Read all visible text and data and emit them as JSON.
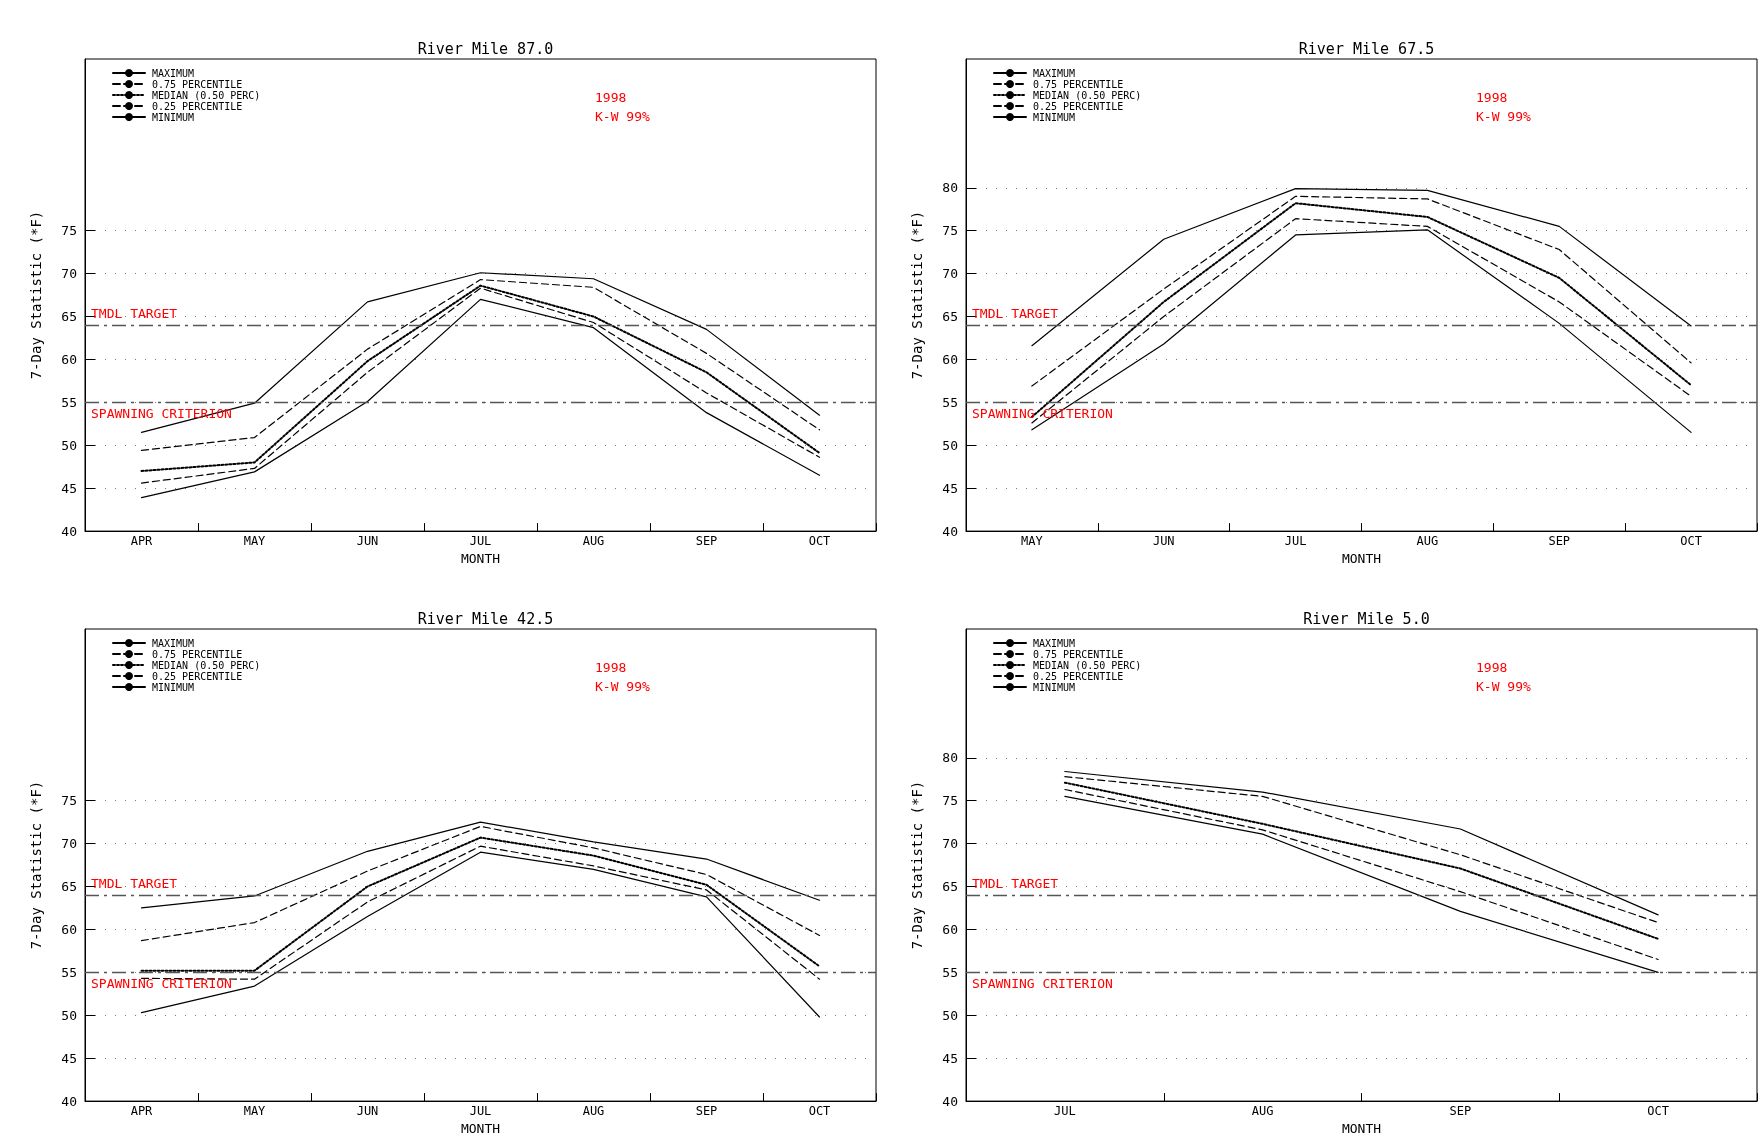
{
  "chart_data": [
    {
      "type": "line",
      "title": "River Mile 87.0",
      "xlabel": "MONTH",
      "ylabel": "7-Day Statistic (*F)",
      "categories": [
        "APR",
        "MAY",
        "JUN",
        "JUL",
        "AUG",
        "SEP",
        "OCT"
      ],
      "ylim": [
        40,
        95
      ],
      "yticks": [
        40,
        45,
        50,
        55,
        60,
        65,
        70,
        75
      ],
      "grid": "y",
      "legend": "top left",
      "marker": "none",
      "series": [
        {
          "name": "MAXIMUM",
          "color": "#000000",
          "line_style": "solid",
          "values": [
            51.5,
            54.9,
            66.7,
            70.1,
            69.4,
            63.5,
            53.5
          ]
        },
        {
          "name": "0.75 PERCENTILE",
          "color": "#000000",
          "line_style": "dashed",
          "values": [
            49.4,
            50.9,
            61.2,
            69.3,
            68.4,
            60.7,
            51.8
          ]
        },
        {
          "name": "MEDIAN (0.50 PERC)",
          "color": "#000000",
          "line_style": "dotted",
          "values": [
            47.0,
            48.0,
            59.8,
            68.6,
            65.0,
            58.5,
            49.1
          ]
        },
        {
          "name": "0.25 PERCENTILE",
          "color": "#000000",
          "line_style": "dashed",
          "values": [
            45.6,
            47.3,
            58.5,
            68.3,
            64.3,
            56.1,
            48.6
          ]
        },
        {
          "name": "MINIMUM",
          "color": "#000000",
          "line_style": "solid",
          "values": [
            43.9,
            46.9,
            55.1,
            67.0,
            63.7,
            53.8,
            46.5
          ]
        }
      ],
      "ref_lines": [
        {
          "axis": "y",
          "value": 64,
          "label": "TMDL TARGET",
          "color": "#555555",
          "line_style": "dashed"
        },
        {
          "axis": "y",
          "value": 55,
          "label": "SPAWNING CRITERION",
          "color": "#555555",
          "line_style": "dashed"
        }
      ],
      "annotations": [
        "1998",
        "K-W 99%"
      ]
    },
    {
      "type": "line",
      "title": "River Mile 67.5",
      "xlabel": "MONTH",
      "ylabel": "7-Day Statistic (*F)",
      "categories": [
        "MAY",
        "JUN",
        "JUL",
        "AUG",
        "SEP",
        "OCT"
      ],
      "ylim": [
        40,
        95
      ],
      "yticks": [
        40,
        45,
        50,
        55,
        60,
        65,
        70,
        75,
        80
      ],
      "grid": "y",
      "legend": "top left",
      "marker": "none",
      "series": [
        {
          "name": "MAXIMUM",
          "color": "#000000",
          "line_style": "solid",
          "values": [
            61.6,
            74.0,
            79.9,
            79.7,
            75.5,
            63.9
          ]
        },
        {
          "name": "0.75 PERCENTILE",
          "color": "#000000",
          "line_style": "dashed",
          "values": [
            56.9,
            68.2,
            79.0,
            78.7,
            72.8,
            59.6
          ]
        },
        {
          "name": "MEDIAN (0.50 PERC)",
          "color": "#000000",
          "line_style": "dotted",
          "values": [
            53.3,
            66.7,
            78.2,
            76.6,
            69.5,
            57.0
          ]
        },
        {
          "name": "0.25 PERCENTILE",
          "color": "#000000",
          "line_style": "dashed",
          "values": [
            52.6,
            65.0,
            76.4,
            75.5,
            66.7,
            55.7
          ]
        },
        {
          "name": "MINIMUM",
          "color": "#000000",
          "line_style": "solid",
          "values": [
            51.8,
            61.8,
            74.5,
            75.1,
            64.2,
            51.5
          ]
        }
      ],
      "ref_lines": [
        {
          "axis": "y",
          "value": 64,
          "label": "TMDL TARGET",
          "color": "#555555",
          "line_style": "dashed"
        },
        {
          "axis": "y",
          "value": 55,
          "label": "SPAWNING CRITERION",
          "color": "#555555",
          "line_style": "dashed"
        }
      ],
      "annotations": [
        "1998",
        "K-W 99%"
      ]
    },
    {
      "type": "line",
      "title": "River Mile 42.5",
      "xlabel": "MONTH",
      "ylabel": "7-Day Statistic (*F)",
      "categories": [
        "APR",
        "MAY",
        "JUN",
        "JUL",
        "AUG",
        "SEP",
        "OCT"
      ],
      "ylim": [
        40,
        95
      ],
      "yticks": [
        40,
        45,
        50,
        55,
        60,
        65,
        70,
        75
      ],
      "grid": "y",
      "legend": "top left",
      "marker": "none",
      "series": [
        {
          "name": "MAXIMUM",
          "color": "#000000",
          "line_style": "solid",
          "values": [
            62.5,
            63.9,
            69.1,
            72.5,
            70.2,
            68.2,
            63.4
          ]
        },
        {
          "name": "0.75 PERCENTILE",
          "color": "#000000",
          "line_style": "dashed",
          "values": [
            58.7,
            60.8,
            66.8,
            72.0,
            69.5,
            66.4,
            59.3
          ]
        },
        {
          "name": "MEDIAN (0.50 PERC)",
          "color": "#000000",
          "line_style": "dotted",
          "values": [
            55.2,
            55.2,
            65.0,
            70.7,
            68.6,
            65.2,
            55.7
          ]
        },
        {
          "name": "0.25 PERCENTILE",
          "color": "#000000",
          "line_style": "dashed",
          "values": [
            54.3,
            54.2,
            63.2,
            69.7,
            67.4,
            64.6,
            54.2
          ]
        },
        {
          "name": "MINIMUM",
          "color": "#000000",
          "line_style": "solid",
          "values": [
            50.3,
            53.4,
            61.5,
            69.0,
            67.0,
            63.8,
            49.8
          ]
        }
      ],
      "ref_lines": [
        {
          "axis": "y",
          "value": 64,
          "label": "TMDL TARGET",
          "color": "#555555",
          "line_style": "dashed"
        },
        {
          "axis": "y",
          "value": 55,
          "label": "SPAWNING CRITERION",
          "color": "#555555",
          "line_style": "dashed"
        }
      ],
      "annotations": [
        "1998",
        "K-W 99%"
      ]
    },
    {
      "type": "line",
      "title": "River Mile 5.0",
      "xlabel": "MONTH",
      "ylabel": "7-Day Statistic (*F)",
      "categories": [
        "JUL",
        "AUG",
        "SEP",
        "OCT"
      ],
      "ylim": [
        40,
        95
      ],
      "yticks": [
        40,
        45,
        50,
        55,
        60,
        65,
        70,
        75,
        80
      ],
      "grid": "y",
      "legend": "top left",
      "marker": "none",
      "series": [
        {
          "name": "MAXIMUM",
          "color": "#000000",
          "line_style": "solid",
          "values": [
            78.4,
            76.0,
            71.7,
            61.7
          ]
        },
        {
          "name": "0.75 PERCENTILE",
          "color": "#000000",
          "line_style": "dashed",
          "values": [
            77.8,
            75.5,
            68.7,
            60.8
          ]
        },
        {
          "name": "MEDIAN (0.50 PERC)",
          "color": "#000000",
          "line_style": "dotted",
          "values": [
            77.1,
            72.3,
            67.1,
            58.9
          ]
        },
        {
          "name": "0.25 PERCENTILE",
          "color": "#000000",
          "line_style": "dashed",
          "values": [
            76.3,
            71.6,
            64.4,
            56.5
          ]
        },
        {
          "name": "MINIMUM",
          "color": "#000000",
          "line_style": "solid",
          "values": [
            75.5,
            71.1,
            62.1,
            55.0
          ]
        }
      ],
      "ref_lines": [
        {
          "axis": "y",
          "value": 64,
          "label": "TMDL TARGET",
          "color": "#555555",
          "line_style": "dashed"
        },
        {
          "axis": "y",
          "value": 55,
          "label": "SPAWNING CRITERION",
          "color": "#555555",
          "line_style": "dashed"
        }
      ],
      "annotations": [
        "1998",
        "K-W 99%"
      ]
    }
  ]
}
